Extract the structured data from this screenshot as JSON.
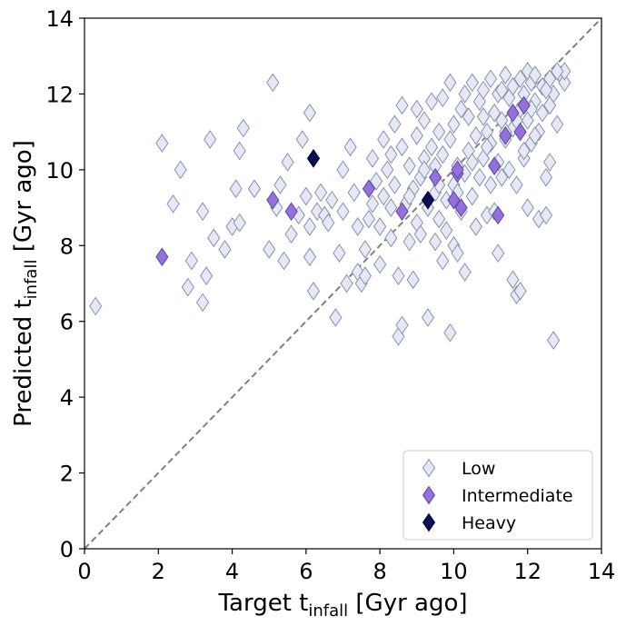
{
  "chart_data": {
    "type": "scatter",
    "title": "",
    "xlabel": {
      "prefix": "Target t",
      "sub": "infall",
      "suffix": " [Gyr ago]"
    },
    "ylabel": {
      "prefix": "Predicted  t",
      "sub": "infall",
      "suffix": " [Gyr ago]"
    },
    "xlim": [
      0,
      14
    ],
    "ylim": [
      0,
      14
    ],
    "xticks": [
      "0",
      "2",
      "4",
      "6",
      "8",
      "10",
      "12",
      "14"
    ],
    "yticks": [
      "0",
      "2",
      "4",
      "6",
      "8",
      "10",
      "12",
      "14"
    ],
    "reference_line": {
      "style": "dashed",
      "color": "#808080",
      "from": [
        0,
        0
      ],
      "to": [
        14,
        14
      ]
    },
    "legend_position": "lower-right",
    "series": [
      {
        "name": "Low",
        "marker": "diamond",
        "fill": "#e6e8f8",
        "edge": "#8893a6",
        "points": [
          [
            0.3,
            6.4
          ],
          [
            2.1,
            10.7
          ],
          [
            2.4,
            9.1
          ],
          [
            2.6,
            10.0
          ],
          [
            2.8,
            6.9
          ],
          [
            2.9,
            7.6
          ],
          [
            3.2,
            8.9
          ],
          [
            3.2,
            6.5
          ],
          [
            3.3,
            7.2
          ],
          [
            3.4,
            10.8
          ],
          [
            3.5,
            8.2
          ],
          [
            3.8,
            7.9
          ],
          [
            4.0,
            8.5
          ],
          [
            4.1,
            9.5
          ],
          [
            4.2,
            10.5
          ],
          [
            4.2,
            8.6
          ],
          [
            4.3,
            11.1
          ],
          [
            4.6,
            9.5
          ],
          [
            5.0,
            7.9
          ],
          [
            5.1,
            12.3
          ],
          [
            5.2,
            9.0
          ],
          [
            5.3,
            9.6
          ],
          [
            5.4,
            7.6
          ],
          [
            5.5,
            10.2
          ],
          [
            5.6,
            8.3
          ],
          [
            5.8,
            8.8
          ],
          [
            5.9,
            10.8
          ],
          [
            6.0,
            9.3
          ],
          [
            6.1,
            11.5
          ],
          [
            6.1,
            8.5
          ],
          [
            6.1,
            7.7
          ],
          [
            6.2,
            6.8
          ],
          [
            6.3,
            8.9
          ],
          [
            6.4,
            9.4
          ],
          [
            6.5,
            8.8
          ],
          [
            6.6,
            8.6
          ],
          [
            6.7,
            9.2
          ],
          [
            6.8,
            6.1
          ],
          [
            6.9,
            7.8
          ],
          [
            7.0,
            8.9
          ],
          [
            7.0,
            10.0
          ],
          [
            7.1,
            7.0
          ],
          [
            7.2,
            10.6
          ],
          [
            7.3,
            9.4
          ],
          [
            7.4,
            7.3
          ],
          [
            7.5,
            7.0
          ],
          [
            7.6,
            7.2
          ],
          [
            7.6,
            7.9
          ],
          [
            7.7,
            8.7
          ],
          [
            7.8,
            10.3
          ],
          [
            7.9,
            9.7
          ],
          [
            8.0,
            8.5
          ],
          [
            8.0,
            7.5
          ],
          [
            8.1,
            9.3
          ],
          [
            8.1,
            10.8
          ],
          [
            8.2,
            10.0
          ],
          [
            8.3,
            8.2
          ],
          [
            8.3,
            10.4
          ],
          [
            8.4,
            9.6
          ],
          [
            8.4,
            11.2
          ],
          [
            8.5,
            7.2
          ],
          [
            8.5,
            5.6
          ],
          [
            8.6,
            5.9
          ],
          [
            8.6,
            10.6
          ],
          [
            8.6,
            11.7
          ],
          [
            8.7,
            9.1
          ],
          [
            8.8,
            8.1
          ],
          [
            8.8,
            10.1
          ],
          [
            8.9,
            7.1
          ],
          [
            8.9,
            9.5
          ],
          [
            9.0,
            8.6
          ],
          [
            9.0,
            10.9
          ],
          [
            9.0,
            11.6
          ],
          [
            9.1,
            9.8
          ],
          [
            9.1,
            8.3
          ],
          [
            9.2,
            10.3
          ],
          [
            9.2,
            11.3
          ],
          [
            9.3,
            6.1
          ],
          [
            9.3,
            9.0
          ],
          [
            9.4,
            10.6
          ],
          [
            9.4,
            11.8
          ],
          [
            9.5,
            8.1
          ],
          [
            9.5,
            9.4
          ],
          [
            9.5,
            10.1
          ],
          [
            9.6,
            11.0
          ],
          [
            9.6,
            8.7
          ],
          [
            9.7,
            7.6
          ],
          [
            9.7,
            10.4
          ],
          [
            9.7,
            11.9
          ],
          [
            9.8,
            9.2
          ],
          [
            9.8,
            8.4
          ],
          [
            9.9,
            10.8
          ],
          [
            9.9,
            12.3
          ],
          [
            9.9,
            5.7
          ],
          [
            10.0,
            8.0
          ],
          [
            10.0,
            9.6
          ],
          [
            10.0,
            11.2
          ],
          [
            10.1,
            7.8
          ],
          [
            10.1,
            10.1
          ],
          [
            10.2,
            11.6
          ],
          [
            10.2,
            8.9
          ],
          [
            10.3,
            7.3
          ],
          [
            10.3,
            9.9
          ],
          [
            10.3,
            12.0
          ],
          [
            10.4,
            10.5
          ],
          [
            10.4,
            11.4
          ],
          [
            10.5,
            9.3
          ],
          [
            10.5,
            12.3
          ],
          [
            10.6,
            10.9
          ],
          [
            10.6,
            8.5
          ],
          [
            10.7,
            11.8
          ],
          [
            10.7,
            9.8
          ],
          [
            10.8,
            10.3
          ],
          [
            10.8,
            12.1
          ],
          [
            10.9,
            8.8
          ],
          [
            10.9,
            11.0
          ],
          [
            11.0,
            9.6
          ],
          [
            11.0,
            12.4
          ],
          [
            11.0,
            10.7
          ],
          [
            11.1,
            11.5
          ],
          [
            11.1,
            8.9
          ],
          [
            11.2,
            10.2
          ],
          [
            11.2,
            12.0
          ],
          [
            11.2,
            7.8
          ],
          [
            11.3,
            11.3
          ],
          [
            11.3,
            9.8
          ],
          [
            11.4,
            12.5
          ],
          [
            11.4,
            10.8
          ],
          [
            11.5,
            11.9
          ],
          [
            11.5,
            10.0
          ],
          [
            11.6,
            12.2
          ],
          [
            11.6,
            11.1
          ],
          [
            11.6,
            7.1
          ],
          [
            11.7,
            6.7
          ],
          [
            11.7,
            9.6
          ],
          [
            11.8,
            12.4
          ],
          [
            11.8,
            11.6
          ],
          [
            11.8,
            6.8
          ],
          [
            11.9,
            10.3
          ],
          [
            11.9,
            12.0
          ],
          [
            12.0,
            12.6
          ],
          [
            12.0,
            11.3
          ],
          [
            12.0,
            9.0
          ],
          [
            12.1,
            10.7
          ],
          [
            12.1,
            12.3
          ],
          [
            12.2,
            11.8
          ],
          [
            12.2,
            12.5
          ],
          [
            12.3,
            8.7
          ],
          [
            12.3,
            11.0
          ],
          [
            12.4,
            12.2
          ],
          [
            12.4,
            11.5
          ],
          [
            12.5,
            9.8
          ],
          [
            12.5,
            8.8
          ],
          [
            12.6,
            12.4
          ],
          [
            12.6,
            10.2
          ],
          [
            12.7,
            12.0
          ],
          [
            12.7,
            5.5
          ],
          [
            12.8,
            11.2
          ],
          [
            12.9,
            12.5
          ],
          [
            13.0,
            12.3
          ],
          [
            13.0,
            12.6
          ],
          [
            12.8,
            12.6
          ],
          [
            12.5,
            12.1
          ],
          [
            12.2,
            10.9
          ],
          [
            11.9,
            10.5
          ],
          [
            11.4,
            11.0
          ],
          [
            10.9,
            10.6
          ],
          [
            10.5,
            10.2
          ],
          [
            10.1,
            9.4
          ],
          [
            9.6,
            9.6
          ],
          [
            9.2,
            10.0
          ],
          [
            8.8,
            9.3
          ],
          [
            8.3,
            9.0
          ],
          [
            7.8,
            9.1
          ],
          [
            7.4,
            8.5
          ],
          [
            10.8,
            11.4
          ],
          [
            11.3,
            12.1
          ],
          [
            11.7,
            11.3
          ],
          [
            12.1,
            11.6
          ],
          [
            12.6,
            11.7
          ]
        ]
      },
      {
        "name": "Intermediate",
        "marker": "diamond",
        "fill": "#9370db",
        "edge": "#5a4aa0",
        "points": [
          [
            2.1,
            7.7
          ],
          [
            5.1,
            9.2
          ],
          [
            5.6,
            8.9
          ],
          [
            7.7,
            9.5
          ],
          [
            8.6,
            8.9
          ],
          [
            9.5,
            9.8
          ],
          [
            10.0,
            9.2
          ],
          [
            10.1,
            9.9
          ],
          [
            10.2,
            9.0
          ],
          [
            10.1,
            10.0
          ],
          [
            11.1,
            10.1
          ],
          [
            11.2,
            8.8
          ],
          [
            11.4,
            10.9
          ],
          [
            11.6,
            11.5
          ],
          [
            11.8,
            11.0
          ],
          [
            11.9,
            11.7
          ]
        ]
      },
      {
        "name": "Heavy",
        "marker": "diamond",
        "fill": "#0d0f55",
        "edge": "#000033",
        "points": [
          [
            6.2,
            10.3
          ],
          [
            9.3,
            9.2
          ]
        ]
      }
    ]
  }
}
